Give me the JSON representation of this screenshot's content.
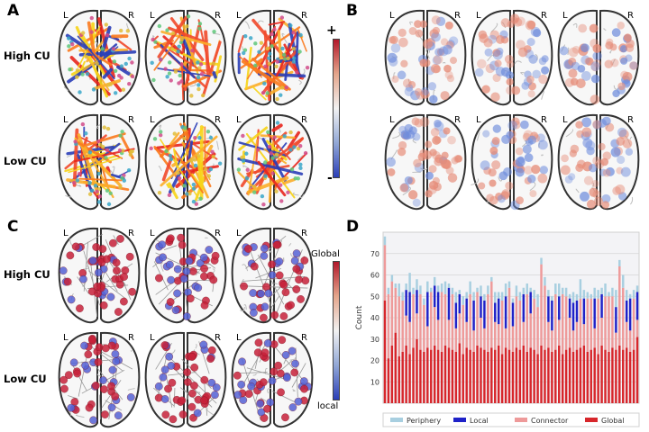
{
  "panels": {
    "A": {
      "label": "A",
      "rows": [
        "High CU",
        "Low CU"
      ],
      "scale": {
        "top": "+",
        "bottom": "-"
      },
      "colors": {
        "top": "#b2182b",
        "mid": "#f2f2f2",
        "bottom": "#2b3fb8"
      }
    },
    "B": {
      "label": "B"
    },
    "C": {
      "label": "C",
      "rows": [
        "High CU",
        "Low CU"
      ],
      "scale": {
        "top": "Global",
        "bottom": "local"
      }
    },
    "D": {
      "label": "D"
    }
  },
  "hemisphere": {
    "left": "L",
    "right": "R"
  },
  "chart_data": {
    "type": "bar",
    "stacked": true,
    "ylabel": "Count",
    "xlabel": "",
    "ylim": [
      0,
      80
    ],
    "yticks": [
      10,
      20,
      30,
      40,
      50,
      60,
      70
    ],
    "grid": true,
    "legend": "bottom",
    "series": [
      {
        "name": "Periphery",
        "color": "#a8cfe0",
        "values": [
          4,
          3,
          3,
          2,
          6,
          4,
          3,
          9,
          3,
          5,
          4,
          3,
          5,
          2,
          4,
          3,
          4,
          6,
          2,
          3,
          5,
          2,
          4,
          3,
          6,
          4,
          2,
          5,
          3,
          4,
          2,
          5,
          3,
          4,
          6,
          3,
          2,
          5,
          4,
          3,
          5,
          2,
          4,
          6,
          3,
          4,
          3,
          2,
          5,
          6,
          3,
          4,
          2,
          5,
          3,
          9,
          4,
          3,
          2,
          5,
          4,
          3,
          6,
          2,
          4,
          8,
          3,
          6,
          5,
          2,
          4,
          3
        ]
      },
      {
        "name": "Local",
        "color": "#1f22c8",
        "values": [
          0,
          0,
          0,
          0,
          0,
          0,
          12,
          14,
          0,
          11,
          0,
          0,
          16,
          0,
          10,
          13,
          0,
          0,
          15,
          0,
          12,
          9,
          0,
          11,
          0,
          14,
          0,
          10,
          13,
          0,
          0,
          9,
          12,
          0,
          15,
          0,
          11,
          0,
          0,
          13,
          0,
          10,
          0,
          0,
          0,
          0,
          12,
          14,
          0,
          11,
          0,
          0,
          9,
          13,
          10,
          0,
          12,
          0,
          0,
          14,
          0,
          11,
          0,
          0,
          0,
          12,
          0,
          0,
          10,
          15,
          0,
          13
        ]
      },
      {
        "name": "Connector",
        "color": "#ee9a9a",
        "values": [
          26,
          30,
          30,
          21,
          28,
          24,
          14,
          15,
          25,
          12,
          26,
          22,
          10,
          27,
          18,
          14,
          28,
          24,
          13,
          26,
          11,
          14,
          23,
          12,
          26,
          10,
          25,
          14,
          10,
          27,
          31,
          13,
          10,
          25,
          9,
          29,
          12,
          24,
          23,
          11,
          27,
          16,
          24,
          22,
          38,
          30,
          12,
          10,
          26,
          12,
          28,
          25,
          14,
          10,
          13,
          23,
          10,
          25,
          24,
          9,
          26,
          13,
          25,
          26,
          24,
          8,
          37,
          29,
          12,
          10,
          24,
          8
        ]
      },
      {
        "name": "Global",
        "color": "#d7262b",
        "values": [
          48,
          21,
          27,
          33,
          22,
          24,
          27,
          23,
          26,
          30,
          25,
          24,
          26,
          25,
          27,
          25,
          24,
          27,
          26,
          25,
          24,
          28,
          23,
          26,
          25,
          24,
          27,
          26,
          25,
          24,
          26,
          25,
          27,
          23,
          26,
          25,
          24,
          26,
          25,
          27,
          24,
          26,
          25,
          23,
          27,
          25,
          26,
          24,
          25,
          27,
          23,
          25,
          26,
          24,
          25,
          26,
          27,
          24,
          25,
          26,
          23,
          27,
          25,
          24,
          26,
          25,
          27,
          25,
          26,
          24,
          25,
          31
        ]
      }
    ]
  }
}
